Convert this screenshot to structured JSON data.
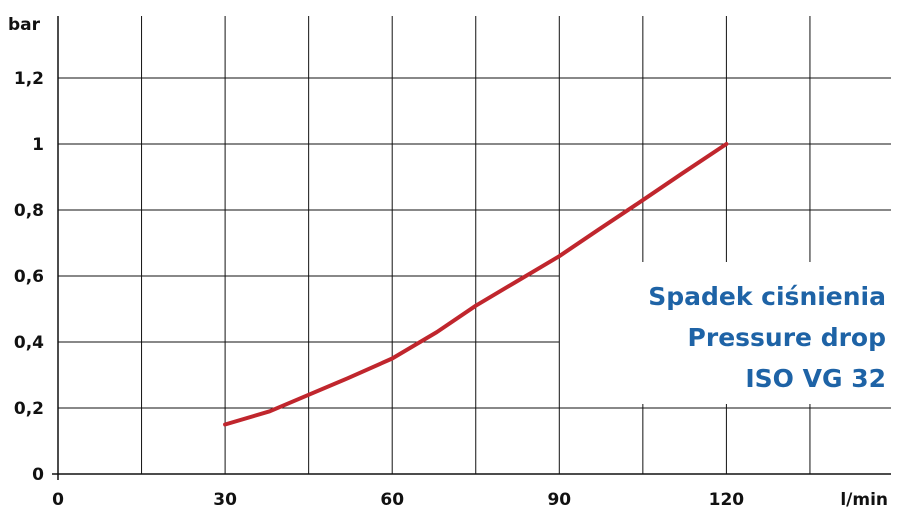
{
  "chart_data": {
    "type": "line",
    "title_lines": [
      "Spadek ciśnienia",
      "Pressure drop",
      "ISO VG 32"
    ],
    "xlabel": "l/min",
    "ylabel": "bar",
    "xlim": [
      0,
      150
    ],
    "ylim": [
      0,
      1.2
    ],
    "x_ticks": [
      0,
      30,
      60,
      90,
      120
    ],
    "x_tick_labels": [
      "0",
      "30",
      "60",
      "90",
      "120"
    ],
    "y_ticks": [
      0,
      0.2,
      0.4,
      0.6,
      0.8,
      1,
      1.2
    ],
    "y_tick_labels": [
      "0",
      "0,2",
      "0,4",
      "0,6",
      "0,8",
      "1",
      "1,2"
    ],
    "x_gridlines": [
      15,
      30,
      45,
      60,
      75,
      90,
      105,
      120,
      135
    ],
    "grid": true,
    "series": [
      {
        "color": "#c0262d",
        "x": [
          30,
          38,
          45,
          52,
          60,
          68,
          75,
          82,
          90,
          97,
          105,
          112,
          120
        ],
        "y": [
          0.15,
          0.19,
          0.24,
          0.29,
          0.35,
          0.43,
          0.51,
          0.58,
          0.66,
          0.74,
          0.83,
          0.91,
          1.0
        ]
      }
    ],
    "colors": {
      "line": "#c0262d",
      "title": "#1e63a6",
      "grid": "#111111"
    }
  }
}
